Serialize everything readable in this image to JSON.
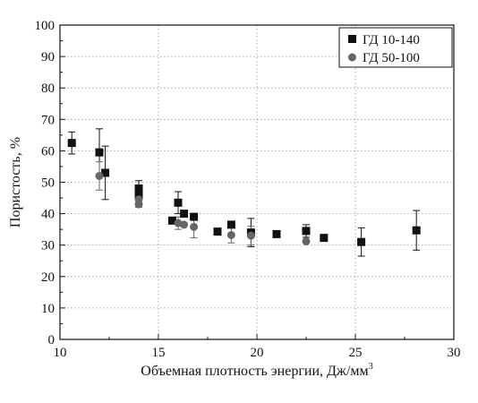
{
  "chart_data": {
    "type": "scatter",
    "title": "",
    "xlabel": "Объемная плотность энергии, Дж/мм",
    "xlabel_superscript": "3",
    "ylabel": "Пористость, %",
    "xlim": [
      10,
      30
    ],
    "ylim": [
      0,
      100
    ],
    "x_ticks": [
      "10",
      "15",
      "20",
      "25",
      "30"
    ],
    "y_ticks": [
      "0",
      "10",
      "20",
      "30",
      "40",
      "50",
      "60",
      "70",
      "80",
      "90",
      "100"
    ],
    "grid": true,
    "grid_style": "dotted",
    "legend_position": "top-right",
    "series": [
      {
        "name": "ГД 10-140",
        "marker": "square",
        "color": "#111111",
        "points": [
          {
            "x": 10.6,
            "y": 62.5,
            "err": 3.5
          },
          {
            "x": 12.0,
            "y": 59.5,
            "err": 7.5
          },
          {
            "x": 12.3,
            "y": 53.0,
            "err": 8.5
          },
          {
            "x": 14.0,
            "y": 48.0,
            "err": 2.5
          },
          {
            "x": 14.0,
            "y": 46.0,
            "err": 0
          },
          {
            "x": 15.7,
            "y": 37.8,
            "err": 0
          },
          {
            "x": 16.0,
            "y": 43.5,
            "err": 3.5
          },
          {
            "x": 16.3,
            "y": 40.0,
            "err": 0
          },
          {
            "x": 16.8,
            "y": 39.0,
            "err": 0
          },
          {
            "x": 18.0,
            "y": 34.3,
            "err": 0
          },
          {
            "x": 18.7,
            "y": 36.5,
            "err": 0
          },
          {
            "x": 19.7,
            "y": 34.0,
            "err": 4.5
          },
          {
            "x": 21.0,
            "y": 33.5,
            "err": 0
          },
          {
            "x": 22.5,
            "y": 34.5,
            "err": 2.0
          },
          {
            "x": 23.4,
            "y": 32.3,
            "err": 0
          },
          {
            "x": 25.3,
            "y": 31.0,
            "err": 4.5
          },
          {
            "x": 28.1,
            "y": 34.7,
            "err": 6.3
          }
        ]
      },
      {
        "name": "ГД 50-100",
        "marker": "circle",
        "color": "#666666",
        "points": [
          {
            "x": 12.0,
            "y": 52.0,
            "err": 4.5
          },
          {
            "x": 14.0,
            "y": 44.5,
            "err": 2.5
          },
          {
            "x": 14.0,
            "y": 43.0,
            "err": 0
          },
          {
            "x": 16.0,
            "y": 37.0,
            "err": 2.0
          },
          {
            "x": 16.3,
            "y": 36.5,
            "err": 0
          },
          {
            "x": 16.8,
            "y": 35.8,
            "err": 3.5
          },
          {
            "x": 18.7,
            "y": 33.2,
            "err": 2.5
          },
          {
            "x": 19.7,
            "y": 33.0,
            "err": 3.0
          },
          {
            "x": 22.5,
            "y": 31.2,
            "err": 0
          }
        ]
      }
    ]
  }
}
